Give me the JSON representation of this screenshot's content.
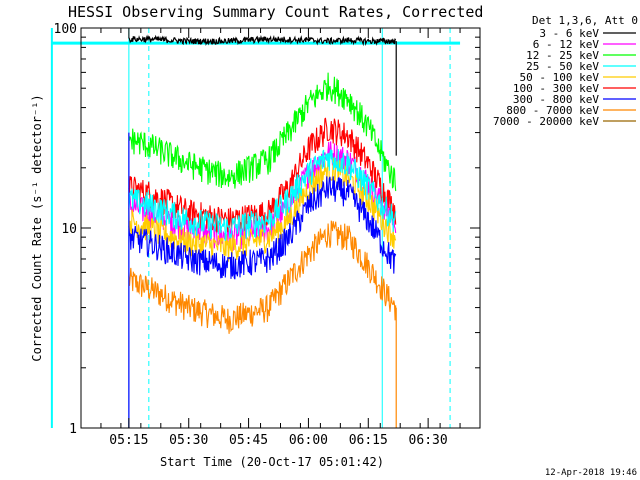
{
  "chart_data": {
    "type": "line",
    "title": "HESSI Observing Summary Count Rates, Corrected",
    "xlabel": "Start Time (20-Oct-17 05:01:42)",
    "ylabel": "Corrected Count Rate (s⁻¹ detector⁻¹)",
    "y_scale": "log",
    "ylim": [
      1,
      100
    ],
    "xlim": [
      "05:03",
      "06:43"
    ],
    "x_tick_labels": [
      "05:15",
      "05:30",
      "05:45",
      "06:00",
      "06:15",
      "06:30"
    ],
    "y_tick_labels": [
      "1",
      "10",
      "100"
    ],
    "legend_title": "Det 1,3,6, Att 0",
    "legend_placement": "right, outside plot",
    "grid": false,
    "data_start": "05:15",
    "data_end": "06:22",
    "series": [
      {
        "name": "3 - 6 keV",
        "color": "#000000",
        "x": [
          "05:15",
          "05:20",
          "05:30",
          "05:40",
          "05:50",
          "06:00",
          "06:05",
          "06:10",
          "06:15",
          "06:20",
          "06:22"
        ],
        "y": [
          88,
          88,
          86,
          86,
          88,
          87,
          86,
          87,
          86,
          86,
          86
        ]
      },
      {
        "name": "6 - 12 keV",
        "color": "#ff00ff",
        "x": [
          "05:15",
          "05:20",
          "05:30",
          "05:40",
          "05:50",
          "05:55",
          "06:00",
          "06:05",
          "06:10",
          "06:15",
          "06:20",
          "06:22"
        ],
        "y": [
          13,
          12,
          10,
          9,
          10,
          13,
          19,
          24,
          22,
          17,
          12,
          11
        ]
      },
      {
        "name": "12 - 25 keV",
        "color": "#00ff00",
        "x": [
          "05:15",
          "05:20",
          "05:30",
          "05:40",
          "05:50",
          "05:55",
          "06:00",
          "06:05",
          "06:10",
          "06:15",
          "06:20",
          "06:22"
        ],
        "y": [
          28,
          26,
          21,
          18,
          22,
          30,
          42,
          52,
          45,
          32,
          20,
          17
        ]
      },
      {
        "name": "25 - 50 keV",
        "color": "#00ffff",
        "x": [
          "05:15",
          "05:20",
          "05:30",
          "05:40",
          "05:50",
          "05:55",
          "06:00",
          "06:05",
          "06:10",
          "06:15",
          "06:20",
          "06:22"
        ],
        "y": [
          14,
          13,
          11,
          10,
          11,
          14,
          19,
          23,
          21,
          16,
          12,
          11
        ]
      },
      {
        "name": "50 - 100 keV",
        "color": "#ffcc00",
        "x": [
          "05:15",
          "05:20",
          "05:30",
          "05:40",
          "05:50",
          "05:55",
          "06:00",
          "06:05",
          "06:10",
          "06:15",
          "06:20",
          "06:22"
        ],
        "y": [
          11,
          10,
          8.5,
          8,
          9,
          11,
          16,
          20,
          18,
          14,
          10,
          9
        ]
      },
      {
        "name": "100 - 300 keV",
        "color": "#ff0000",
        "x": [
          "05:15",
          "05:20",
          "05:30",
          "05:40",
          "05:50",
          "05:55",
          "06:00",
          "06:05",
          "06:10",
          "06:15",
          "06:20",
          "06:22"
        ],
        "y": [
          16,
          15,
          12,
          11,
          12,
          16,
          25,
          32,
          29,
          21,
          14,
          12
        ]
      },
      {
        "name": "300 - 800 keV",
        "color": "#0000ff",
        "x": [
          "05:15",
          "05:20",
          "05:30",
          "05:40",
          "05:50",
          "05:55",
          "06:00",
          "06:05",
          "06:10",
          "06:15",
          "06:20",
          "06:22"
        ],
        "y": [
          9,
          8.5,
          7,
          6.5,
          7,
          9,
          13,
          16,
          15,
          11,
          7.5,
          6.5
        ]
      },
      {
        "name": "800 - 7000 keV",
        "color": "#ff8800",
        "x": [
          "05:15",
          "05:20",
          "05:30",
          "05:40",
          "05:50",
          "05:55",
          "06:00",
          "06:05",
          "06:10",
          "06:15",
          "06:20",
          "06:22"
        ],
        "y": [
          5.5,
          5,
          4,
          3.5,
          4,
          5.5,
          7.5,
          9.5,
          9,
          6.5,
          4.5,
          4
        ]
      },
      {
        "name": "7000 - 20000 keV",
        "color": "#996600",
        "x": [],
        "y": []
      }
    ]
  },
  "footer": {
    "date": "12-Apr-2018 19:46"
  }
}
